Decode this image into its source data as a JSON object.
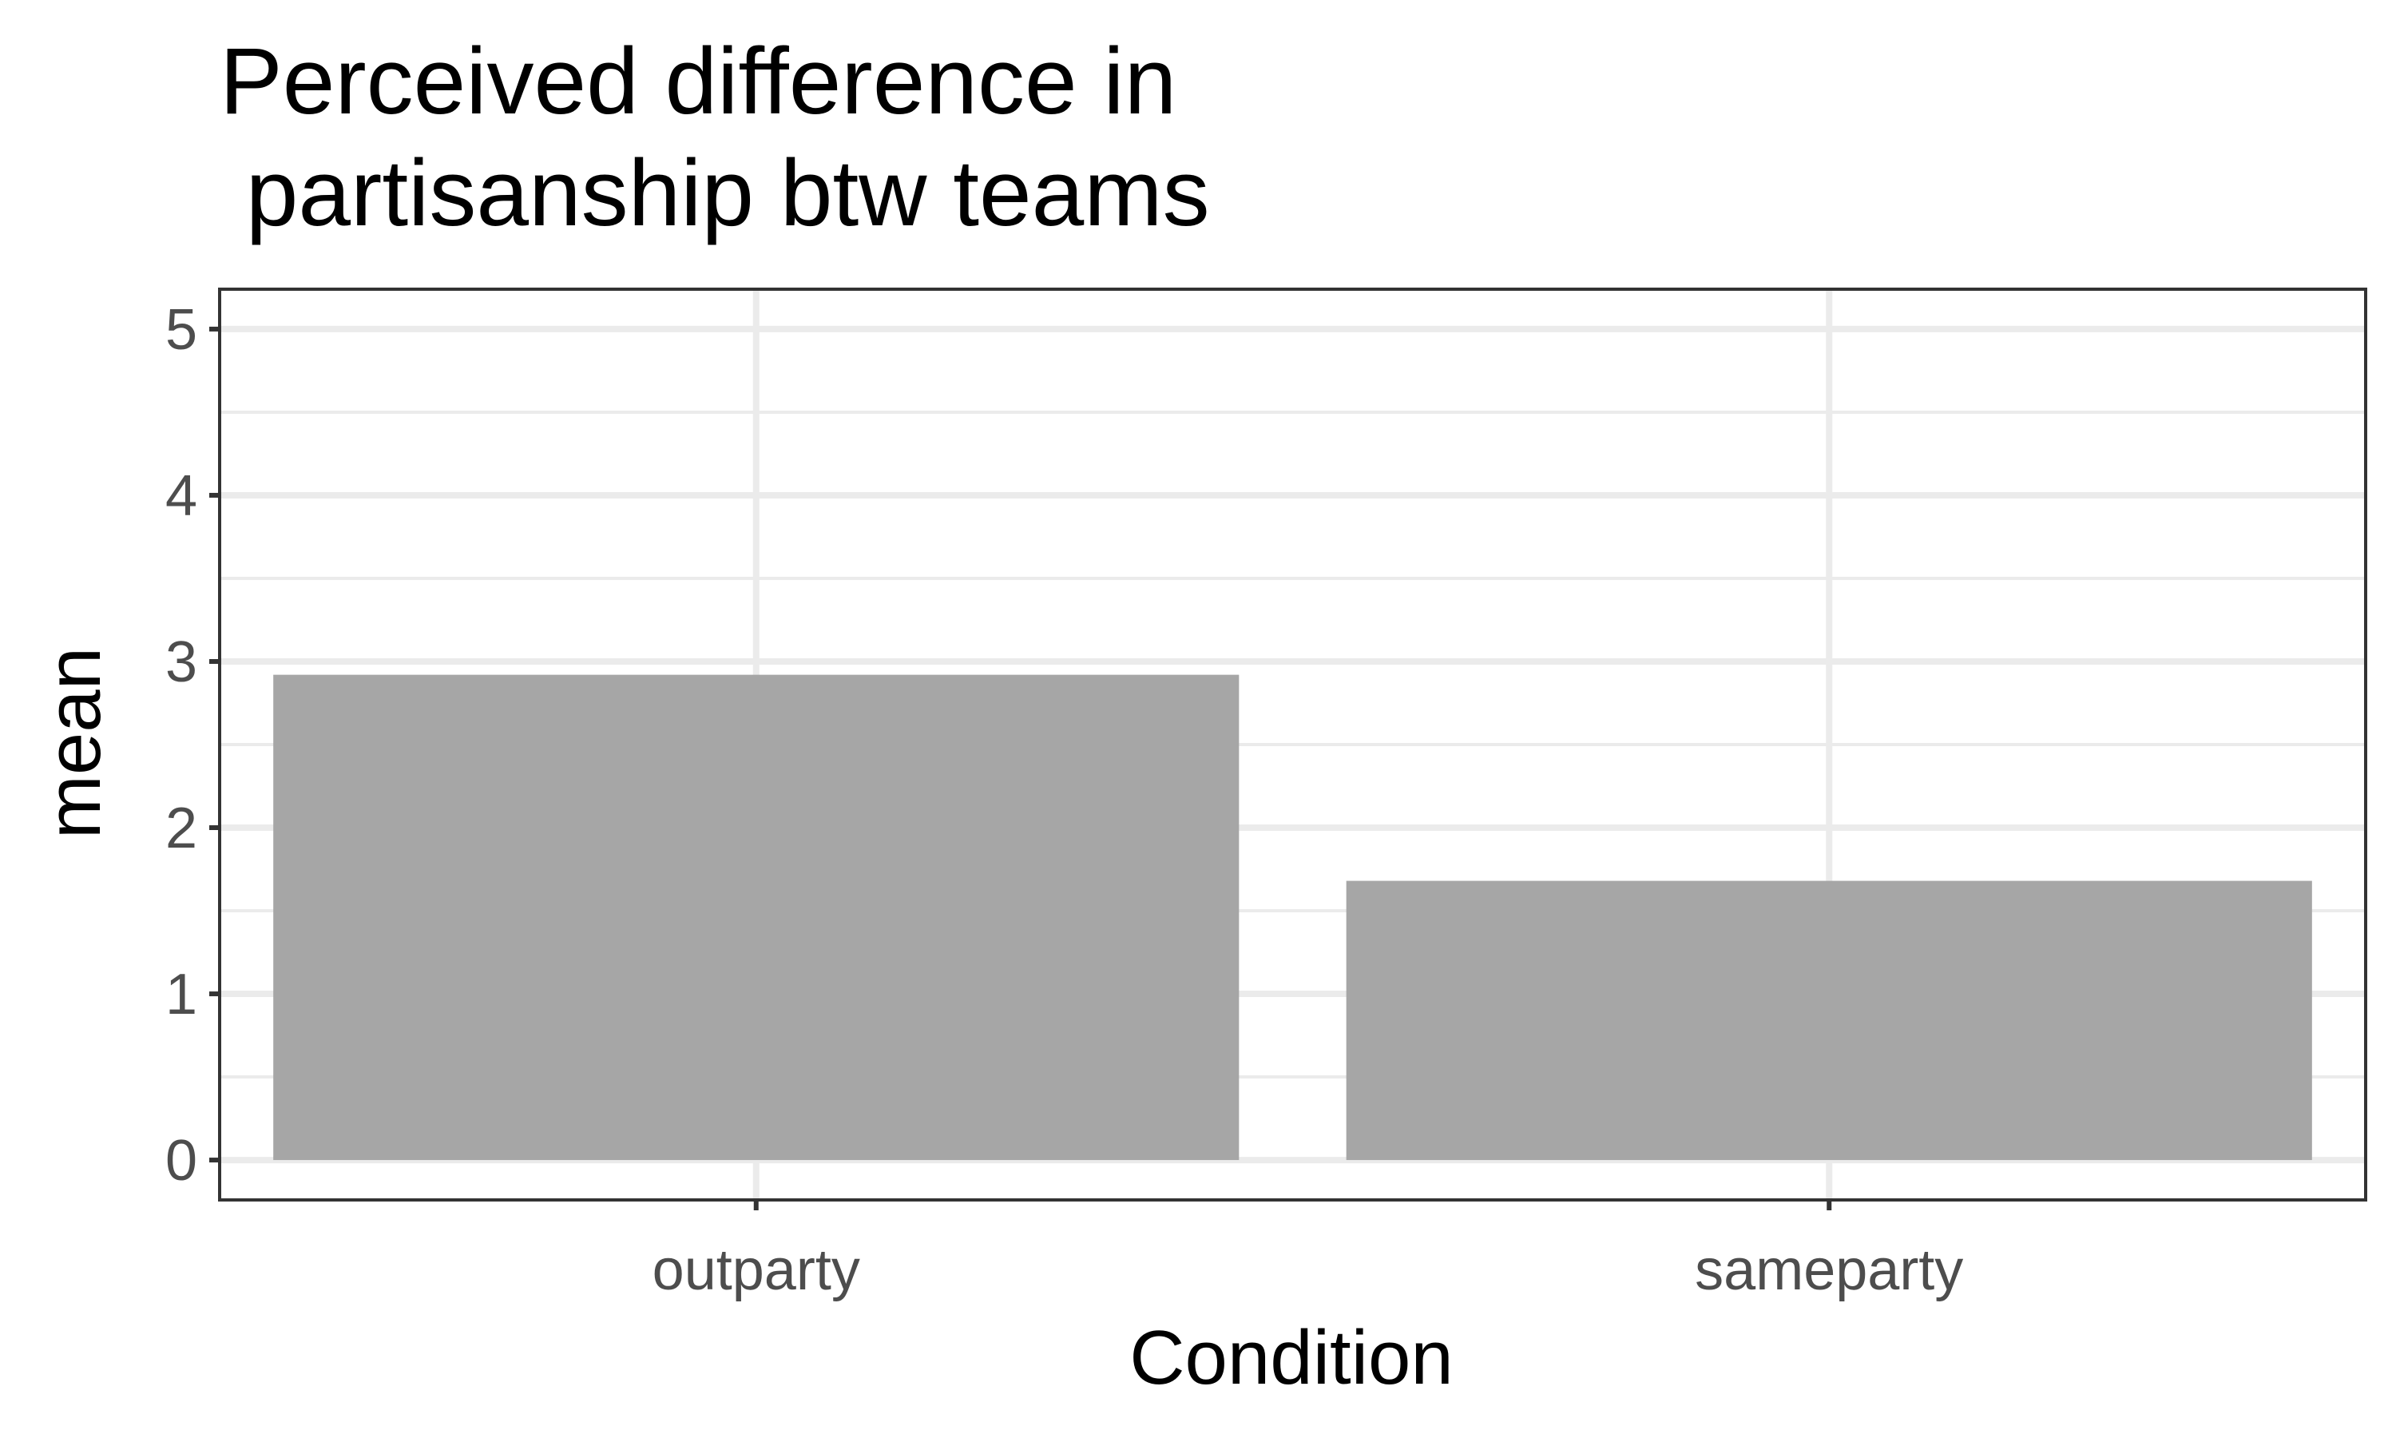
{
  "chart_data": {
    "type": "bar",
    "title_lines": [
      "Perceived difference in",
      " partisanship btw teams"
    ],
    "xlabel": "Condition",
    "ylabel": "mean",
    "categories": [
      "outparty",
      "sameparty"
    ],
    "values": [
      2.92,
      1.68
    ],
    "ylim": [
      -0.24,
      5.24
    ],
    "yticks": [
      0,
      1,
      2,
      3,
      4,
      5
    ],
    "ytick_labels": [
      "0",
      "1",
      "2",
      "3",
      "4",
      "5"
    ],
    "grid": true,
    "legend": "none",
    "colors": {
      "bar": "#a6a6a6",
      "grid": "#ebebeb",
      "panel_border": "#333333",
      "tick_label": "#4d4d4d",
      "text": "#000000"
    }
  }
}
